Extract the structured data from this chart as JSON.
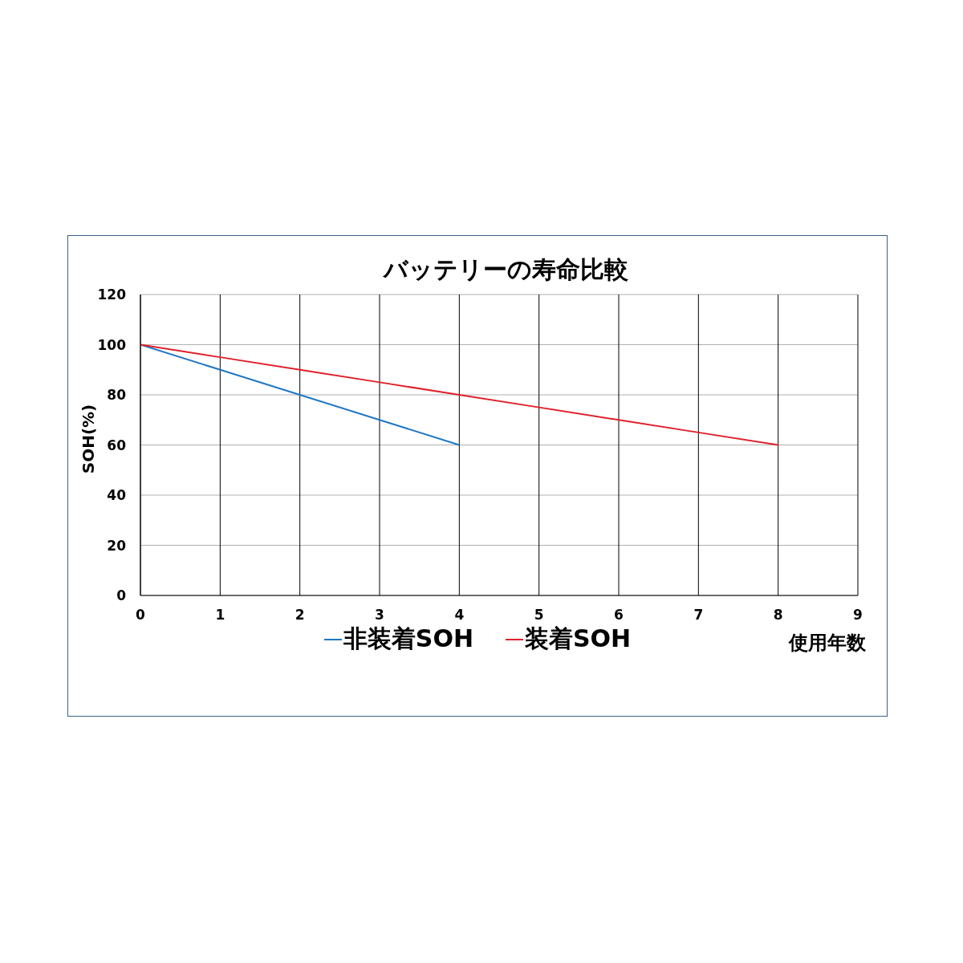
{
  "chart_data": {
    "type": "line",
    "title": "バッテリーの寿命比較",
    "xlabel": "使用年数",
    "ylabel": "SOH(%)",
    "series": [
      {
        "name": "非装着SOH",
        "color": "#1f77c4",
        "x": [
          0,
          1,
          2,
          3,
          4
        ],
        "values": [
          100,
          90,
          80,
          70,
          60
        ]
      },
      {
        "name": "装着SOH",
        "color": "#e0202a",
        "x": [
          0,
          1,
          2,
          3,
          4,
          5,
          6,
          7,
          8
        ],
        "values": [
          100,
          95,
          90,
          85,
          80,
          75,
          70,
          65,
          60
        ]
      }
    ],
    "xlim": [
      0,
      9
    ],
    "xticks": [
      0,
      1,
      2,
      3,
      4,
      5,
      6,
      7,
      8,
      9
    ],
    "ylim": [
      0,
      120
    ],
    "yticks": [
      0,
      20,
      40,
      60,
      80,
      100,
      120
    ],
    "grid": true,
    "legend": "bottom",
    "marker": "none",
    "line_style": "solid"
  }
}
